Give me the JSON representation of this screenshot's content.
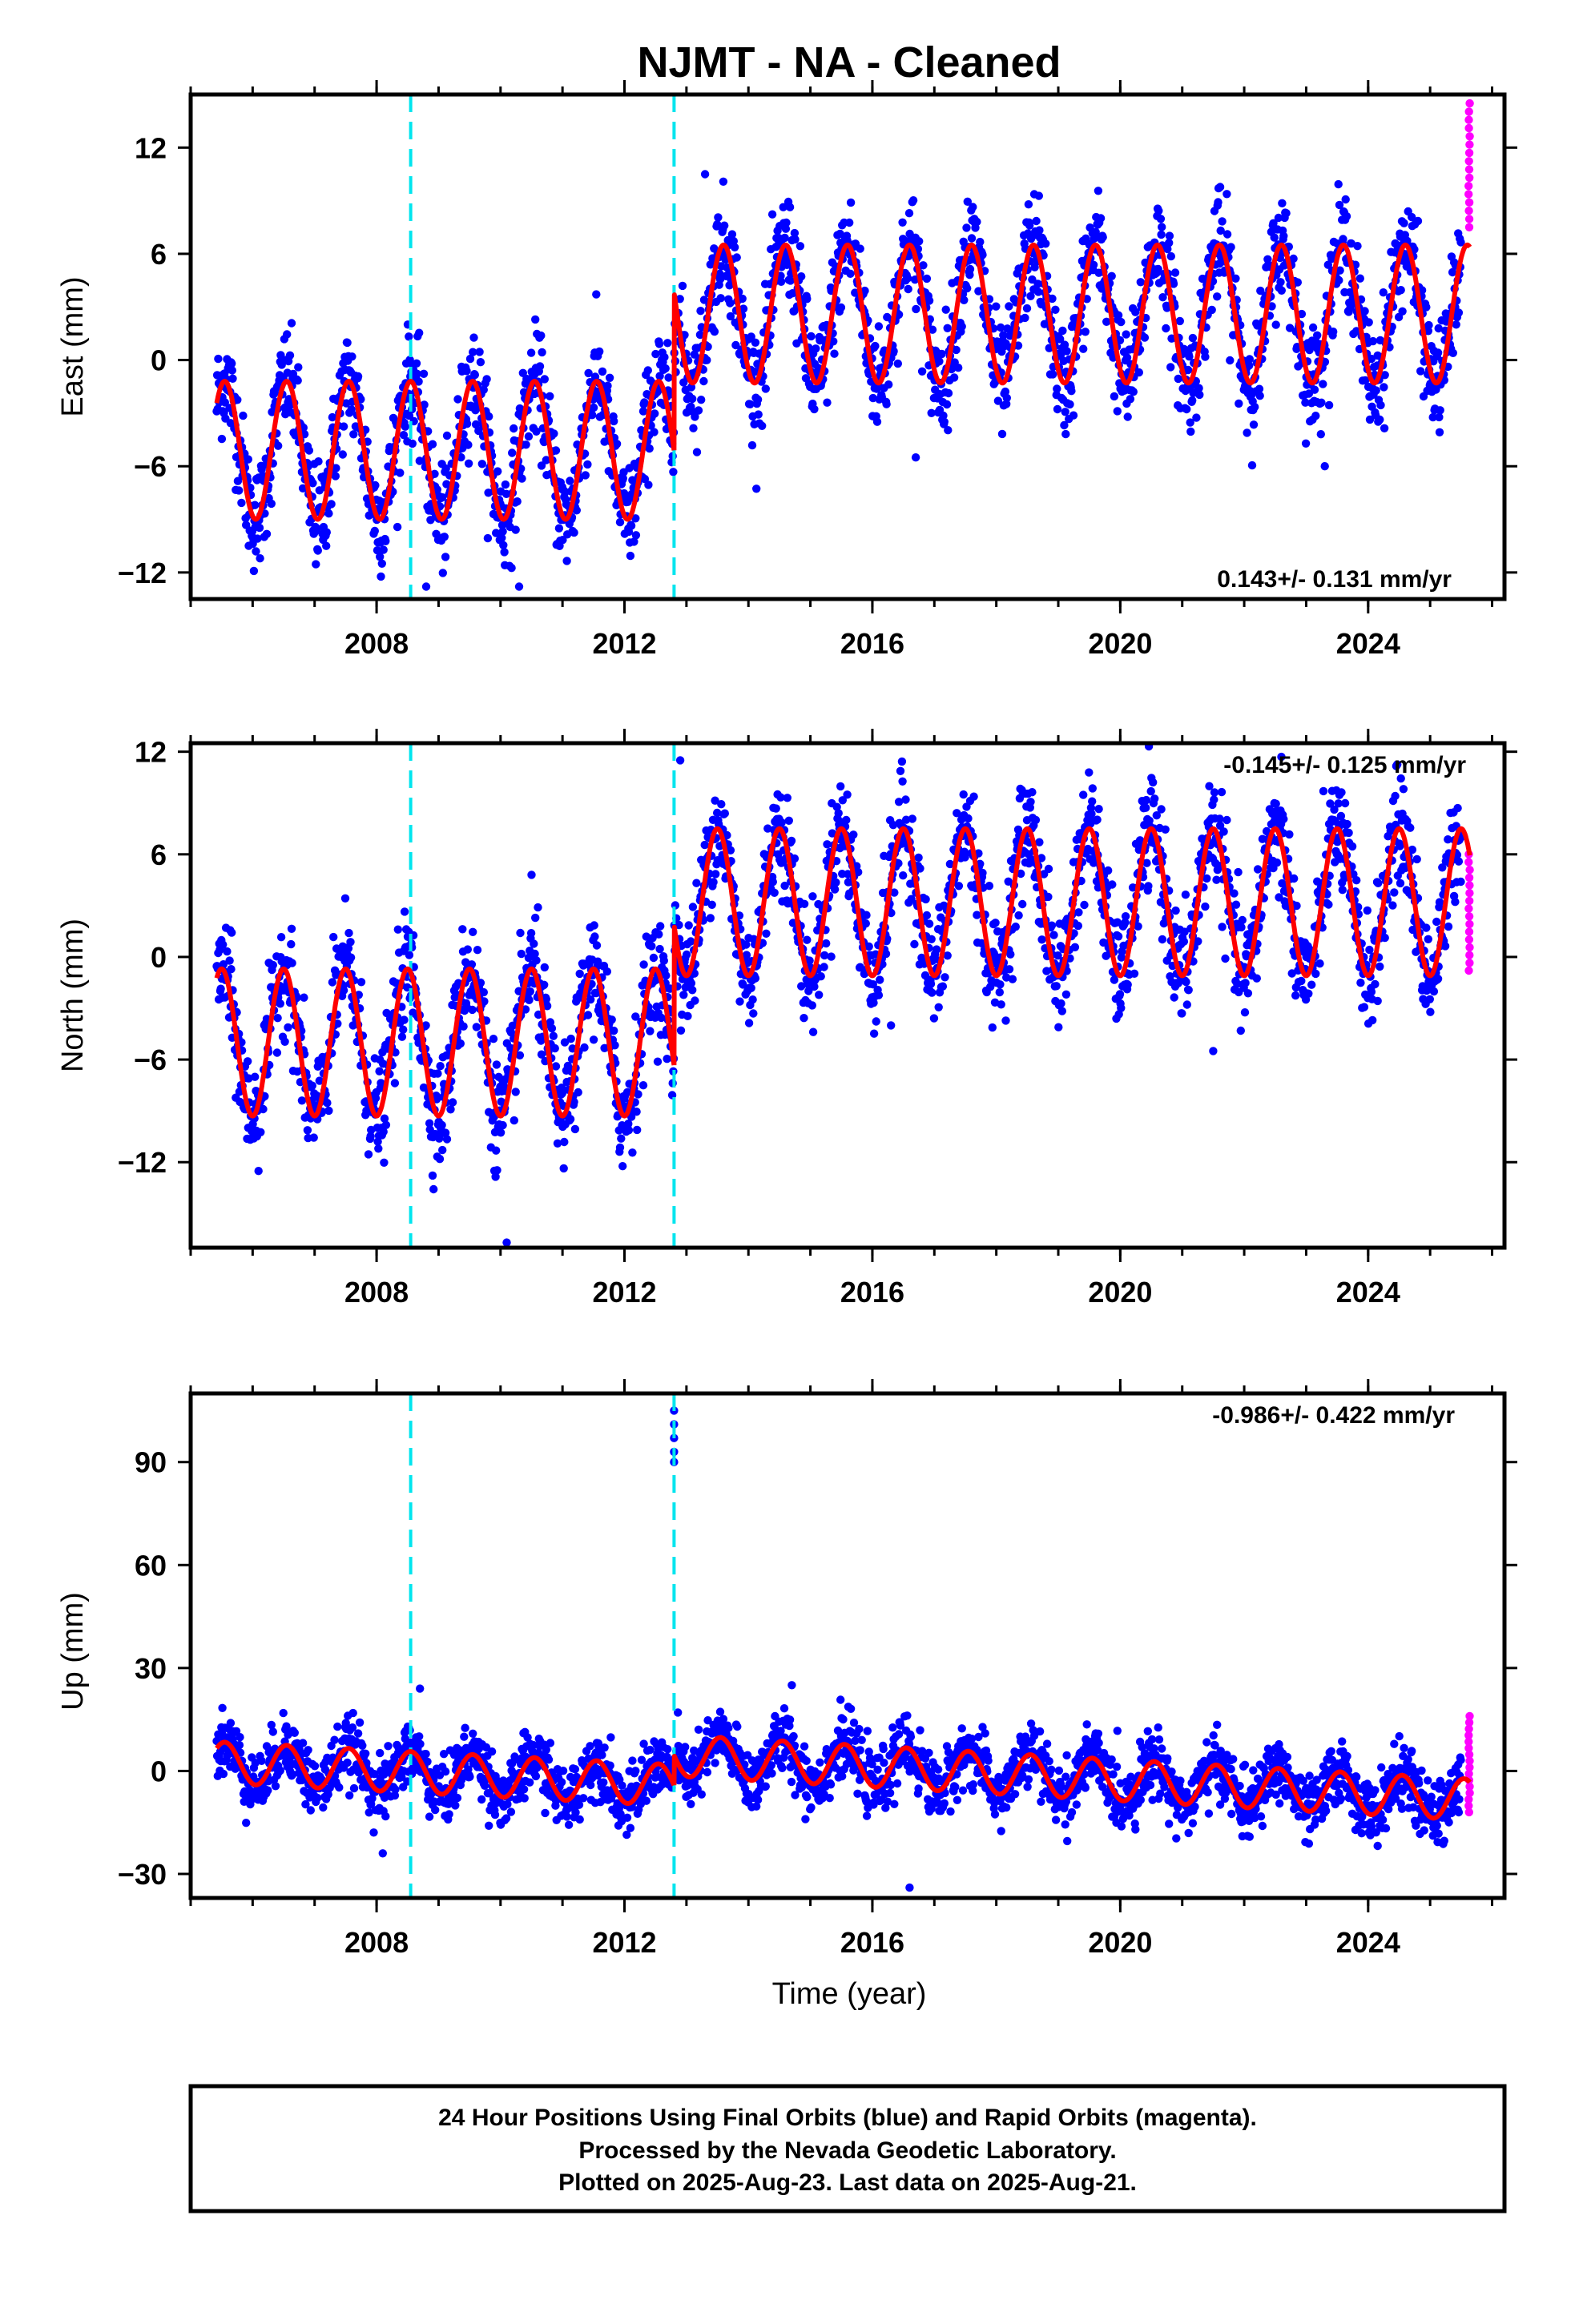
{
  "title": "NJMT  - NA - Cleaned",
  "xlabel": "Time (year)",
  "footer": {
    "lines": [
      "24 Hour Positions Using Final Orbits (blue) and Rapid Orbits (magenta).",
      "Processed by the Nevada Geodetic Laboratory.",
      "Plotted on 2025-Aug-23. Last data on 2025-Aug-21."
    ]
  },
  "colors": {
    "final_orbits": "#0000ff",
    "rapid_orbits": "#ff00ff",
    "model_fit": "#ff0000",
    "events": "#00e5ee",
    "frame": "#000000"
  },
  "chart_data": [
    {
      "type": "scatter",
      "component": "east",
      "ylabel": "East (mm)",
      "rate_text": "0.143+/- 0.131 mm/yr",
      "xlim": [
        2005.0,
        2026.2
      ],
      "ylim": [
        -13.5,
        15
      ],
      "x_ticks": [
        2008,
        2012,
        2016,
        2020,
        2024
      ],
      "y_ticks": [
        -12,
        -6,
        0,
        6,
        12
      ],
      "event_lines_x": [
        2008.55,
        2012.8
      ],
      "data_start": 2005.42,
      "data_end": 2025.64,
      "rapid_start": 2025.5,
      "segments": [
        {
          "start": 2005.42,
          "end": 2012.8,
          "offset": -5.1,
          "amplitude": 3.9,
          "peak_phase": 0.55,
          "scatter": 1.5
        },
        {
          "start": 2012.8,
          "end": 2025.64,
          "offset": 2.6,
          "amplitude": 3.9,
          "peak_phase": 0.6,
          "scatter": 1.5
        }
      ],
      "rapid_range": [
        7.5,
        14.5
      ],
      "outliers": [
        [
          2013.3,
          10.5
        ],
        [
          2023.3,
          -6
        ],
        [
          2016.7,
          -5.5
        ],
        [
          2010.3,
          -12.8
        ],
        [
          2008.8,
          -12.8
        ]
      ]
    },
    {
      "type": "scatter",
      "component": "north",
      "ylabel": "North (mm)",
      "rate_text": "-0.145+/- 0.125 mm/yr",
      "xlim": [
        2005.0,
        2026.2
      ],
      "ylim": [
        -17,
        12.5
      ],
      "x_ticks": [
        2008,
        2012,
        2016,
        2020,
        2024
      ],
      "y_ticks": [
        -12,
        -6,
        0,
        6,
        12
      ],
      "event_lines_x": [
        2008.55,
        2012.8
      ],
      "data_start": 2005.42,
      "data_end": 2025.64,
      "rapid_start": 2025.5,
      "segments": [
        {
          "start": 2005.42,
          "end": 2012.8,
          "offset": -5,
          "amplitude": 4.3,
          "peak_phase": 0.5,
          "scatter": 1.6
        },
        {
          "start": 2012.8,
          "end": 2025.64,
          "offset": 3.2,
          "amplitude": 4.3,
          "peak_phase": 0.5,
          "scatter": 1.6
        }
      ],
      "rapid_range": [
        -0.8,
        6
      ],
      "outliers": [
        [
          2010.1,
          -16.7
        ],
        [
          2010.5,
          4.8
        ],
        [
          2009.9,
          -12.5
        ],
        [
          2016.3,
          -4
        ],
        [
          2021.5,
          -5.5
        ],
        [
          2012.9,
          11.5
        ],
        [
          2022.6,
          11.7
        ]
      ]
    },
    {
      "type": "scatter",
      "component": "up",
      "ylabel": "Up (mm)",
      "rate_text": "-0.986+/- 0.422 mm/yr",
      "xlim": [
        2005.0,
        2026.2
      ],
      "ylim": [
        -37,
        110
      ],
      "x_ticks": [
        2008,
        2012,
        2016,
        2020,
        2024
      ],
      "y_ticks": [
        -30,
        0,
        30,
        60,
        90
      ],
      "event_lines_x": [
        2008.55,
        2012.8
      ],
      "data_start": 2005.42,
      "data_end": 2025.64,
      "rapid_start": 2025.5,
      "segments": [
        {
          "start": 2005.42,
          "end": 2012.8,
          "offset": 2.5,
          "amplitude": 6,
          "peak_phase": 0.55,
          "scatter": 4.5,
          "trend": -0.9
        },
        {
          "start": 2012.8,
          "end": 2025.64,
          "offset": 4.5,
          "amplitude": 6,
          "peak_phase": 0.55,
          "scatter": 4.5,
          "trend": -1.0
        }
      ],
      "rapid_range": [
        -12,
        16
      ],
      "outliers": [
        [
          2012.8,
          105
        ],
        [
          2012.8,
          101
        ],
        [
          2012.8,
          97
        ],
        [
          2012.8,
          93
        ],
        [
          2012.8,
          90
        ],
        [
          2016.6,
          -34
        ],
        [
          2008.1,
          -24
        ],
        [
          2008.7,
          24
        ],
        [
          2014.7,
          25
        ]
      ]
    }
  ]
}
